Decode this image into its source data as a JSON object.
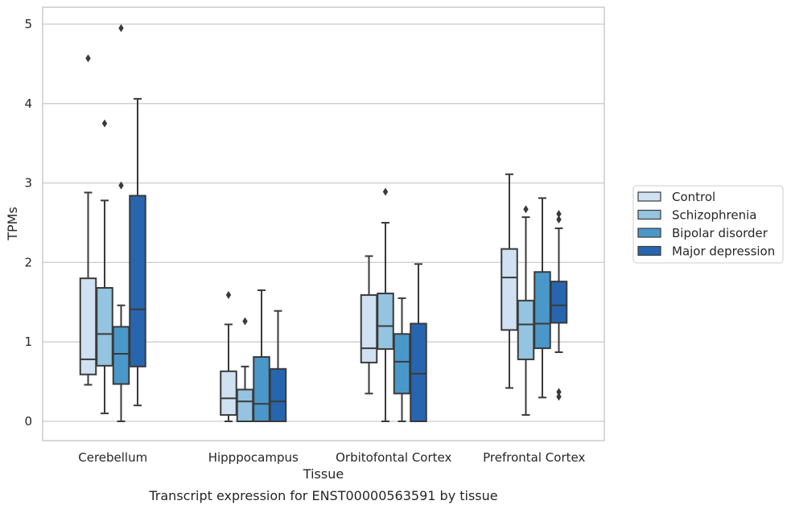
{
  "chart_data": {
    "type": "boxplot",
    "caption": "Transcript expression for ENST00000563591 by tissue",
    "xlabel": "Tissue",
    "ylabel": "TPMs",
    "ylim": [
      -0.25,
      5.2
    ],
    "yticks": [
      0,
      1,
      2,
      3,
      4,
      5
    ],
    "grid": true,
    "legend_position": "right",
    "categories": [
      "Cerebellum",
      "Hipppocampus",
      "Orbitofontal Cortex",
      "Prefrontal Cortex"
    ],
    "series": [
      {
        "name": "Control",
        "color": "#d0e1f2",
        "boxes": [
          {
            "whislo": 0.46,
            "q1": 0.59,
            "med": 0.78,
            "q3": 1.8,
            "whishi": 2.88,
            "fliers": [
              4.57
            ]
          },
          {
            "whislo": 0.0,
            "q1": 0.08,
            "med": 0.29,
            "q3": 0.63,
            "whishi": 1.22,
            "fliers": [
              1.59
            ]
          },
          {
            "whislo": 0.35,
            "q1": 0.74,
            "med": 0.92,
            "q3": 1.59,
            "whishi": 2.08,
            "fliers": []
          },
          {
            "whislo": 0.42,
            "q1": 1.15,
            "med": 1.81,
            "q3": 2.17,
            "whishi": 3.11,
            "fliers": []
          }
        ]
      },
      {
        "name": "Schizophrenia",
        "color": "#94c4df",
        "boxes": [
          {
            "whislo": 0.1,
            "q1": 0.7,
            "med": 1.1,
            "q3": 1.68,
            "whishi": 2.78,
            "fliers": [
              3.75
            ]
          },
          {
            "whislo": 0.0,
            "q1": 0.0,
            "med": 0.25,
            "q3": 0.4,
            "whishi": 0.69,
            "fliers": [
              1.26
            ]
          },
          {
            "whislo": 0.0,
            "q1": 0.91,
            "med": 1.2,
            "q3": 1.61,
            "whishi": 2.5,
            "fliers": [
              2.89
            ]
          },
          {
            "whislo": 0.08,
            "q1": 0.78,
            "med": 1.22,
            "q3": 1.52,
            "whishi": 2.57,
            "fliers": [
              2.67
            ]
          }
        ]
      },
      {
        "name": "Bipolar disorder",
        "color": "#4a98c9",
        "boxes": [
          {
            "whislo": 0.0,
            "q1": 0.47,
            "med": 0.85,
            "q3": 1.19,
            "whishi": 1.46,
            "fliers": [
              2.97,
              4.95
            ]
          },
          {
            "whislo": 0.0,
            "q1": 0.0,
            "med": 0.22,
            "q3": 0.81,
            "whishi": 1.65,
            "fliers": []
          },
          {
            "whislo": 0.0,
            "q1": 0.35,
            "med": 0.75,
            "q3": 1.1,
            "whishi": 1.55,
            "fliers": []
          },
          {
            "whislo": 0.3,
            "q1": 0.92,
            "med": 1.23,
            "q3": 1.88,
            "whishi": 2.81,
            "fliers": []
          }
        ]
      },
      {
        "name": "Major depression",
        "color": "#2766ae",
        "boxes": [
          {
            "whislo": 0.2,
            "q1": 0.69,
            "med": 1.41,
            "q3": 2.84,
            "whishi": 4.06,
            "fliers": []
          },
          {
            "whislo": 0.0,
            "q1": 0.0,
            "med": 0.25,
            "q3": 0.66,
            "whishi": 1.39,
            "fliers": []
          },
          {
            "whislo": 0.0,
            "q1": 0.0,
            "med": 0.6,
            "q3": 1.23,
            "whishi": 1.98,
            "fliers": []
          },
          {
            "whislo": 0.87,
            "q1": 1.24,
            "med": 1.46,
            "q3": 1.76,
            "whishi": 2.43,
            "fliers": [
              0.31,
              0.37,
              2.54,
              2.61
            ]
          }
        ]
      }
    ]
  }
}
